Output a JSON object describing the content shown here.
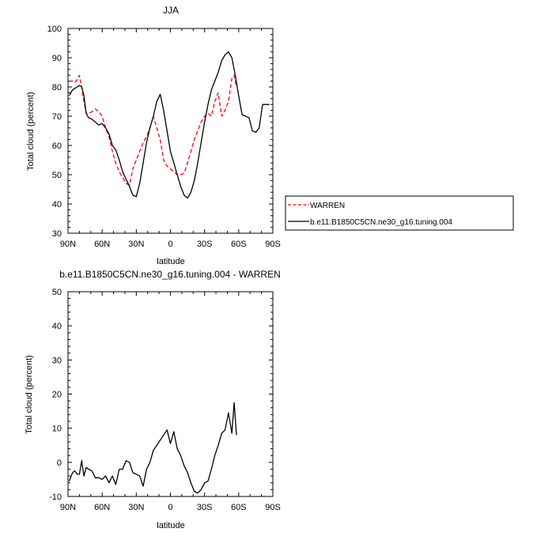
{
  "chart_data": [
    {
      "type": "line",
      "title": "JJA",
      "xlabel": "latitude",
      "ylabel": "Total cloud (percent)",
      "xlim": [
        90,
        -90
      ],
      "ylim": [
        30,
        100
      ],
      "x_ticks": [
        90,
        60,
        30,
        0,
        -30,
        -60,
        -90
      ],
      "x_tick_labels": [
        "90N",
        "60N",
        "30N",
        "0",
        "30S",
        "60S",
        "90S"
      ],
      "y_ticks": [
        30,
        40,
        50,
        60,
        70,
        80,
        90,
        100
      ],
      "y_tick_labels": [
        "30",
        "40",
        "50",
        "60",
        "70",
        "80",
        "90",
        "100"
      ],
      "grid": false,
      "legend_position": "right",
      "series": [
        {
          "name": "WARREN",
          "color": "#ff0000",
          "dash": "dashed",
          "x": [
            89,
            86,
            84,
            82,
            80,
            78,
            76,
            74,
            72,
            69,
            66,
            63,
            60,
            57,
            54,
            51,
            48,
            45,
            42,
            39,
            36,
            33,
            30,
            27,
            24,
            21,
            18,
            15,
            12,
            9,
            6,
            3,
            0,
            -3,
            -6,
            -9,
            -12,
            -15,
            -18,
            -21,
            -24,
            -27,
            -30,
            -33,
            -36,
            -39,
            -42,
            -45,
            -48,
            -51,
            -54,
            -56,
            -58
          ],
          "y": [
            82,
            82,
            81.5,
            82.5,
            84,
            80,
            75,
            71,
            71,
            71.5,
            72.5,
            71.5,
            70,
            66,
            63,
            58,
            54,
            51,
            49,
            47,
            46.5,
            52,
            55,
            58,
            61,
            63,
            66,
            70,
            66,
            62,
            55,
            53,
            52,
            51,
            50,
            50,
            50.5,
            54,
            58,
            62,
            65,
            68,
            70,
            71,
            70,
            75,
            78,
            70,
            72,
            75,
            83,
            84,
            80
          ]
        },
        {
          "name": "b.e11.B1850C5CN.ne30_g16.tuning.004",
          "color": "#000000",
          "dash": "solid",
          "x": [
            89,
            86,
            84,
            82,
            80,
            78,
            76,
            74,
            72,
            69,
            66,
            63,
            60,
            57,
            54,
            51,
            48,
            45,
            42,
            39,
            36,
            33,
            30,
            27,
            24,
            21,
            18,
            15,
            12,
            9,
            6,
            3,
            0,
            -3,
            -6,
            -9,
            -12,
            -15,
            -18,
            -21,
            -24,
            -27,
            -30,
            -33,
            -36,
            -39,
            -42,
            -45,
            -48,
            -51,
            -54,
            -57,
            -60,
            -63,
            -66,
            -69,
            -72,
            -75,
            -78,
            -81,
            -84,
            -87
          ],
          "y": [
            77,
            79,
            79.5,
            80,
            80.5,
            80,
            77,
            71,
            69.5,
            69,
            68,
            67,
            67.5,
            66,
            64,
            60,
            58.5,
            55,
            51,
            48.5,
            46,
            43,
            42.5,
            47,
            54,
            61,
            66,
            70,
            75,
            77.5,
            72,
            65,
            58,
            54,
            50,
            46,
            43,
            42,
            44,
            48,
            54,
            61,
            68,
            74,
            79,
            82,
            85,
            89,
            91,
            92,
            90,
            84,
            77,
            70.5,
            70,
            69.5,
            65,
            64.5,
            66,
            74,
            74,
            74
          ]
        }
      ]
    },
    {
      "type": "line",
      "title": "b.e11.B1850C5CN.ne30_g16.tuning.004 - WARREN",
      "xlabel": "latitude",
      "ylabel": "Total cloud (percent)",
      "xlim": [
        90,
        -90
      ],
      "ylim": [
        -10,
        50
      ],
      "x_ticks": [
        90,
        60,
        30,
        0,
        -30,
        -60,
        -90
      ],
      "x_tick_labels": [
        "90N",
        "60N",
        "30N",
        "0",
        "30S",
        "60S",
        "90S"
      ],
      "y_ticks": [
        -10,
        0,
        10,
        20,
        30,
        40,
        50
      ],
      "y_tick_labels": [
        "-10",
        "0",
        "10",
        "20",
        "30",
        "40",
        "50"
      ],
      "grid": false,
      "series": [
        {
          "color": "#000000",
          "dash": "solid",
          "x": [
            89,
            86,
            84,
            82,
            80,
            78,
            76,
            74,
            72,
            69,
            66,
            63,
            60,
            57,
            54,
            51,
            48,
            45,
            42,
            39,
            36,
            33,
            30,
            27,
            24,
            21,
            18,
            15,
            12,
            9,
            6,
            3,
            0,
            -3,
            -6,
            -9,
            -12,
            -15,
            -18,
            -21,
            -24,
            -27,
            -30,
            -33,
            -36,
            -39,
            -42,
            -45,
            -48,
            -51,
            -54,
            -56,
            -58
          ],
          "y": [
            -5.5,
            -3,
            -2.5,
            -3.5,
            -3.5,
            0.5,
            -4,
            -1.5,
            -2,
            -2.5,
            -4.5,
            -4.5,
            -5,
            -4,
            -6,
            -4,
            -6.5,
            -2,
            -2,
            0.5,
            0,
            -3,
            -3.5,
            -4,
            -7,
            -2,
            0,
            3.5,
            5,
            6.5,
            8,
            9.5,
            5.5,
            9,
            4,
            2,
            -1,
            -3,
            -6,
            -8.5,
            -9,
            -8,
            -6,
            -5.5,
            -2,
            2,
            5,
            8.5,
            9.5,
            14.5,
            8.5,
            17.5,
            8
          ]
        }
      ]
    }
  ],
  "legend": {
    "items": [
      "WARREN",
      "b.e11.B1850C5CN.ne30_g16.tuning.004"
    ]
  }
}
